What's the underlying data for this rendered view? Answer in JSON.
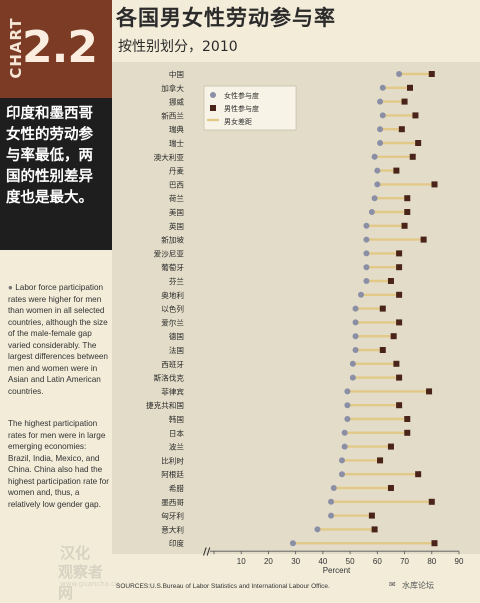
{
  "badge": {
    "chart_word": "CHART",
    "number": "2.2"
  },
  "headline": "印度和墨西哥女性的劳动参与率最低，两国的性别差异度也是最大。",
  "notes": {
    "paragraph1": "Labor force participation rates were higher for men than women in all selected countries, although the size of the male-female gap varied considerably. The largest differences between men and women were in Asian and Latin American countries.",
    "paragraph2": "The highest participation rates for men were in large emerging economies: Brazil, India, Mexico, and China. China also had the highest participation rate for women and, thus, a relatively low gender gap."
  },
  "watermark_left": {
    "line1": "汉化",
    "line2": "观察者网",
    "line3": "www.guancha.cn"
  },
  "title": "各国男女性劳动参与率",
  "subtitle": "按性别划分，2010",
  "source": "SOURCES:U.S.Bureau of Labor Statistics and International Labour Office.",
  "watermark_right": "水库论坛",
  "colors": {
    "female": "#8a8fa6",
    "male": "#4a2418",
    "gap": "#e3c987",
    "badge": "#7b3b24",
    "panel": "#e2dcc8"
  },
  "chart_data": {
    "type": "dot-range",
    "xlabel": "Percent",
    "xlim": [
      0,
      90
    ],
    "xticks": [
      0,
      10,
      20,
      30,
      40,
      50,
      60,
      70,
      80,
      90
    ],
    "legend": {
      "placement": "top-left",
      "entries": [
        "女性参与度",
        "男性参与度",
        "男女差距"
      ]
    },
    "categories": [
      "中国",
      "加拿大",
      "挪威",
      "新西兰",
      "瑞典",
      "瑞士",
      "澳大利亚",
      "丹麦",
      "巴西",
      "荷兰",
      "美国",
      "英国",
      "新加坡",
      "爱沙尼亚",
      "葡萄牙",
      "芬兰",
      "奥地利",
      "以色列",
      "爱尔兰",
      "德国",
      "法国",
      "西班牙",
      "斯洛伐克",
      "菲律宾",
      "捷克共和国",
      "韩国",
      "日本",
      "波兰",
      "比利时",
      "阿根廷",
      "希腊",
      "墨西哥",
      "匈牙利",
      "意大利",
      "印度"
    ],
    "series": [
      {
        "name": "女性参与度",
        "values": [
          68,
          62,
          61,
          62,
          61,
          61,
          59,
          60,
          60,
          59,
          58,
          56,
          56,
          56,
          56,
          56,
          54,
          52,
          52,
          52,
          52,
          51,
          51,
          49,
          49,
          49,
          48,
          48,
          47,
          47,
          44,
          43,
          43,
          38,
          29
        ]
      },
      {
        "name": "男性参与度",
        "values": [
          80,
          72,
          70,
          74,
          69,
          75,
          73,
          67,
          81,
          71,
          71,
          70,
          77,
          68,
          68,
          65,
          68,
          62,
          68,
          66,
          62,
          67,
          68,
          79,
          68,
          71,
          71,
          65,
          61,
          75,
          65,
          80,
          58,
          59,
          81
        ]
      }
    ]
  }
}
